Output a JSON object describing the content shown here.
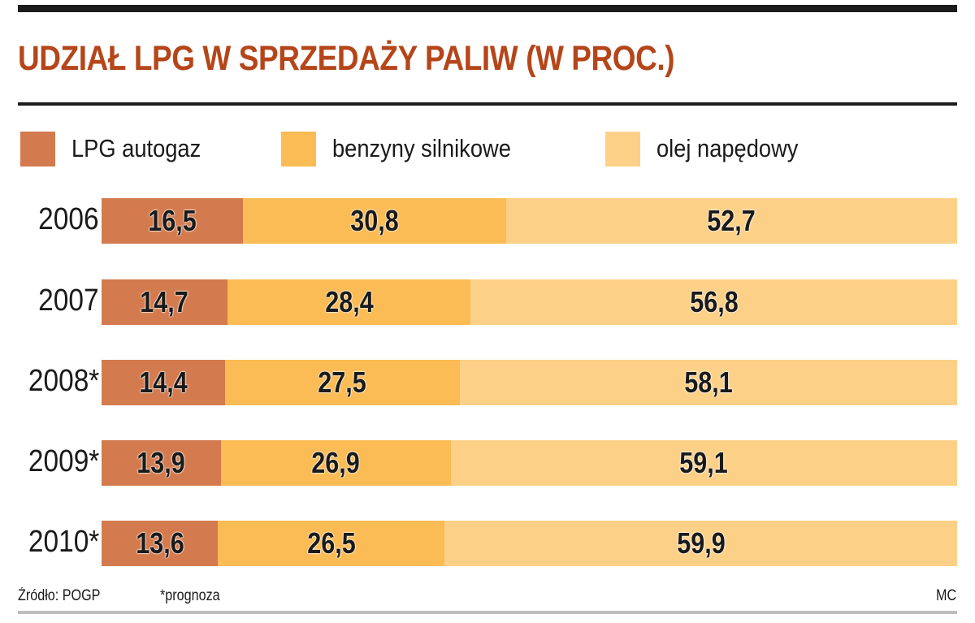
{
  "title": "UDZIAŁ LPG W SPRZEDAŻY PALIW (W PROC.)",
  "colors": {
    "title": "#b5461a",
    "lpg": "#d37b4e",
    "benzyny": "#fbbb55",
    "olej": "#fdd088"
  },
  "legend": [
    {
      "label": "LPG autogaz",
      "color": "#d37b4e"
    },
    {
      "label": "benzyny silnikowe",
      "color": "#fbbb55"
    },
    {
      "label": "olej napędowy",
      "color": "#fdd088"
    }
  ],
  "rows": [
    {
      "year": "2006",
      "values": [
        "16,5",
        "30,8",
        "52,7"
      ]
    },
    {
      "year": "2007",
      "values": [
        "14,7",
        "28,4",
        "56,8"
      ]
    },
    {
      "year": "2008*",
      "values": [
        "14,4",
        "27,5",
        "58,1"
      ]
    },
    {
      "year": "2009*",
      "values": [
        "13,9",
        "26,9",
        "59,1"
      ]
    },
    {
      "year": "2010*",
      "values": [
        "13,6",
        "26,5",
        "59,9"
      ]
    }
  ],
  "footer": {
    "source": "Źródło: POGP",
    "note": "*prognoza",
    "credit": "MC"
  },
  "chart_data": {
    "type": "bar",
    "orientation": "horizontal",
    "stacked": true,
    "title": "UDZIAŁ LPG W SPRZEDAŻY PALIW (W PROC.)",
    "xlabel": "",
    "ylabel": "",
    "categories": [
      "2006",
      "2007",
      "2008*",
      "2009*",
      "2010*"
    ],
    "series": [
      {
        "name": "LPG autogaz",
        "values": [
          16.5,
          14.7,
          14.4,
          13.9,
          13.6
        ]
      },
      {
        "name": "benzyny silnikowe",
        "values": [
          30.8,
          28.4,
          27.5,
          26.9,
          26.5
        ]
      },
      {
        "name": "olej napędowy",
        "values": [
          52.7,
          56.8,
          58.1,
          59.1,
          59.9
        ]
      }
    ],
    "xlim": [
      0,
      100
    ],
    "grid": false,
    "legend_position": "top",
    "annotations": [
      "Źródło: POGP",
      "*prognoza",
      "MC"
    ]
  }
}
